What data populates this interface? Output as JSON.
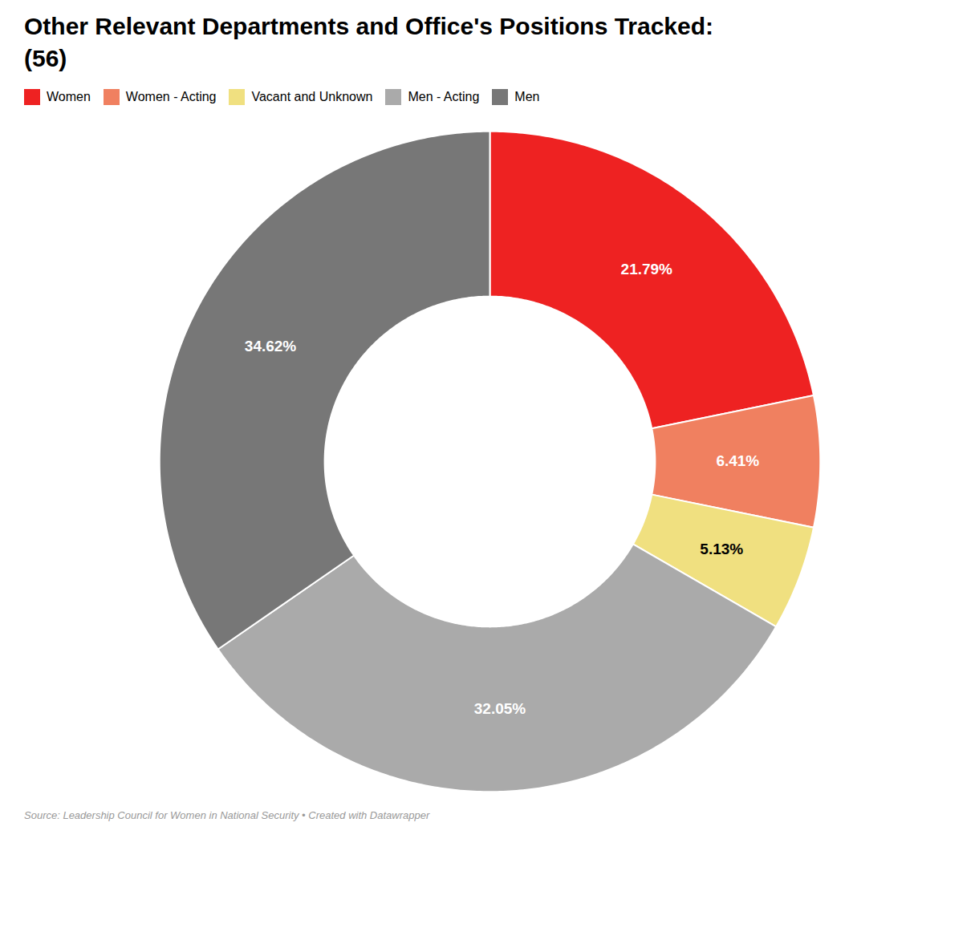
{
  "chart_data": {
    "type": "pie",
    "title": "Other Relevant Departments and Office's Positions Tracked:",
    "subtitle": "(56)",
    "categories": [
      "Women",
      "Women - Acting",
      "Vacant and Unknown",
      "Men - Acting",
      "Men"
    ],
    "values": [
      21.79,
      6.41,
      5.13,
      32.05,
      34.62
    ],
    "value_labels": [
      "21.79%",
      "6.41%",
      "5.13%",
      "32.05%",
      "34.62%"
    ],
    "colors": [
      "#ee2222",
      "#f08060",
      "#f0e080",
      "#aaaaaa",
      "#777777"
    ],
    "data_labels": true,
    "legend": "top",
    "caption": "Source: Leadership Council for Women in National Security • Created with Datawrapper"
  }
}
